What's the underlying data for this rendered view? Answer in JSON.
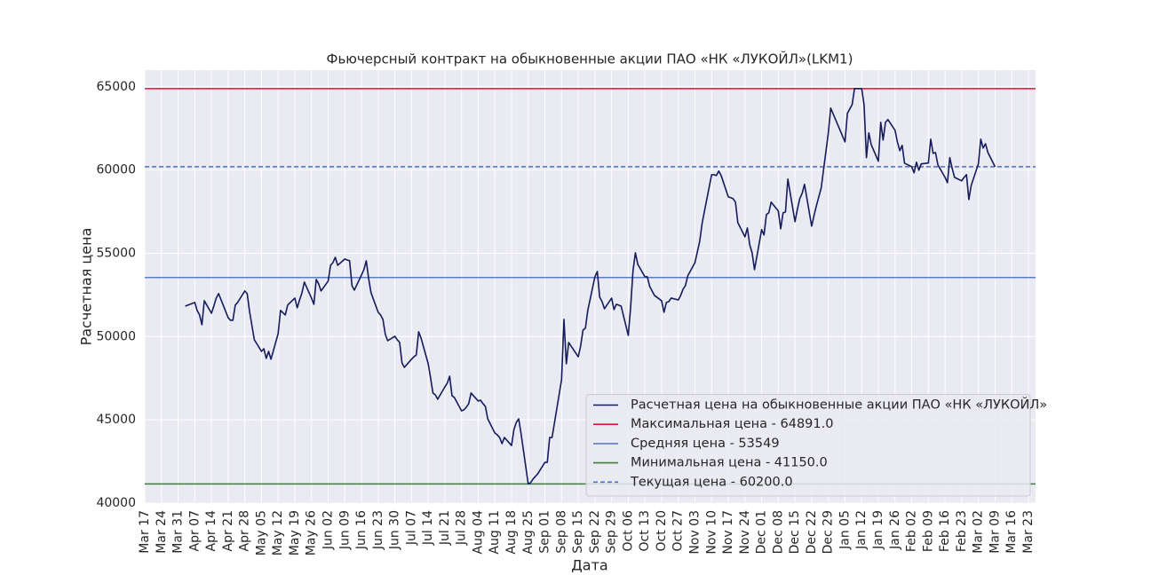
{
  "chart_data": {
    "type": "line",
    "title": "Фьючерсный контракт на обыкновенные акции ПАО «НК «ЛУКОЙЛ»(LKM1)",
    "xlabel": "Дата",
    "ylabel": "Расчетная цена",
    "grid": true,
    "legend": "lower right",
    "xlim": [
      "Mar 17",
      "Mar 26"
    ],
    "ylim": [
      40000,
      66000
    ],
    "yticks": [
      40000,
      45000,
      50000,
      55000,
      60000,
      65000
    ],
    "xticks": [
      "Mar 17",
      "Mar 24",
      "Mar 31",
      "Apr 07",
      "Apr 14",
      "Apr 21",
      "Apr 28",
      "May 05",
      "May 12",
      "May 19",
      "May 26",
      "Jun 02",
      "Jun 09",
      "Jun 16",
      "Jun 23",
      "Jun 30",
      "Jul 07",
      "Jul 14",
      "Jul 21",
      "Jul 28",
      "Aug 04",
      "Aug 11",
      "Aug 18",
      "Aug 25",
      "Sep 01",
      "Sep 08",
      "Sep 15",
      "Sep 22",
      "Sep 29",
      "Oct 06",
      "Oct 13",
      "Oct 20",
      "Oct 27",
      "Nov 03",
      "Nov 10",
      "Nov 17",
      "Nov 24",
      "Dec 01",
      "Dec 08",
      "Dec 15",
      "Dec 22",
      "Dec 29",
      "Jan 05",
      "Jan 12",
      "Jan 19",
      "Jan 26",
      "Feb 02",
      "Feb 09",
      "Feb 16",
      "Feb 23",
      "Mar 02",
      "Mar 09",
      "Mar 16",
      "Mar 23"
    ],
    "x": [
      "Apr 03",
      "Apr 07",
      "Apr 08",
      "Apr 09",
      "Apr 10",
      "Apr 11",
      "Apr 14",
      "Apr 15",
      "Apr 16",
      "Apr 17",
      "Apr 21",
      "Apr 22",
      "Apr 23",
      "Apr 24",
      "Apr 25",
      "Apr 28",
      "Apr 29",
      "Apr 30",
      "May 02",
      "May 05",
      "May 06",
      "May 07",
      "May 08",
      "May 09",
      "May 12",
      "May 13",
      "May 15",
      "May 16",
      "May 19",
      "May 20",
      "May 21",
      "May 22",
      "May 23",
      "May 26",
      "May 27",
      "May 28",
      "May 29",
      "May 30",
      "Jun 02",
      "Jun 03",
      "Jun 04",
      "Jun 05",
      "Jun 06",
      "Jun 09",
      "Jun 10",
      "Jun 11",
      "Jun 12",
      "Jun 13",
      "Jun 16",
      "Jun 17",
      "Jun 18",
      "Jun 19",
      "Jun 20",
      "Jun 23",
      "Jun 24",
      "Jun 25",
      "Jun 26",
      "Jun 27",
      "Jun 30",
      "Jul 01",
      "Jul 02",
      "Jul 03",
      "Jul 04",
      "Jul 07",
      "Jul 08",
      "Jul 09",
      "Jul 10",
      "Jul 11",
      "Jul 14",
      "Jul 15",
      "Jul 16",
      "Jul 17",
      "Jul 18",
      "Jul 21",
      "Jul 22",
      "Jul 23",
      "Jul 24",
      "Jul 25",
      "Jul 28",
      "Jul 29",
      "Jul 30",
      "Jul 31",
      "Aug 01",
      "Aug 04",
      "Aug 05",
      "Aug 06",
      "Aug 07",
      "Aug 08",
      "Aug 11",
      "Aug 12",
      "Aug 13",
      "Aug 14",
      "Aug 15",
      "Aug 18",
      "Aug 19",
      "Aug 20",
      "Aug 21",
      "Aug 22",
      "Aug 25",
      "Aug 26",
      "Aug 27",
      "Aug 28",
      "Aug 29",
      "Sep 01",
      "Sep 02",
      "Sep 03",
      "Sep 04",
      "Sep 05",
      "Sep 08",
      "Sep 09",
      "Sep 10",
      "Sep 11",
      "Sep 12",
      "Sep 15",
      "Sep 16",
      "Sep 17",
      "Sep 18",
      "Sep 19",
      "Sep 22",
      "Sep 23",
      "Sep 24",
      "Sep 25",
      "Sep 26",
      "Sep 29",
      "Sep 30",
      "Oct 01",
      "Oct 02",
      "Oct 03",
      "Oct 06",
      "Oct 07",
      "Oct 08",
      "Oct 09",
      "Oct 10",
      "Oct 13",
      "Oct 14",
      "Oct 15",
      "Oct 16",
      "Oct 17",
      "Oct 20",
      "Oct 21",
      "Oct 22",
      "Oct 23",
      "Oct 24",
      "Oct 27",
      "Oct 28",
      "Oct 29",
      "Oct 30",
      "Oct 31",
      "Nov 03",
      "Nov 05",
      "Nov 06",
      "Nov 07",
      "Nov 10",
      "Nov 11",
      "Nov 12",
      "Nov 13",
      "Nov 14",
      "Nov 17",
      "Nov 18",
      "Nov 19",
      "Nov 20",
      "Nov 21",
      "Nov 24",
      "Nov 25",
      "Nov 26",
      "Nov 27",
      "Nov 28",
      "Dec 01",
      "Dec 02",
      "Dec 03",
      "Dec 04",
      "Dec 05",
      "Dec 08",
      "Dec 09",
      "Dec 10",
      "Dec 11",
      "Dec 12",
      "Dec 15",
      "Dec 16",
      "Dec 17",
      "Dec 18",
      "Dec 19",
      "Dec 22",
      "Dec 23",
      "Dec 24",
      "Dec 25",
      "Dec 26",
      "Dec 29",
      "Dec 30",
      "Jan 05",
      "Jan 06",
      "Jan 08",
      "Jan 09",
      "Jan 12",
      "Jan 13",
      "Jan 14",
      "Jan 15",
      "Jan 16",
      "Jan 19",
      "Jan 20",
      "Jan 21",
      "Jan 22",
      "Jan 23",
      "Jan 26",
      "Jan 27",
      "Jan 28",
      "Jan 29",
      "Jan 30",
      "Feb 02",
      "Feb 03",
      "Feb 04",
      "Feb 05",
      "Feb 06",
      "Feb 09",
      "Feb 10",
      "Feb 11",
      "Feb 12",
      "Feb 13",
      "Feb 16",
      "Feb 17",
      "Feb 18",
      "Feb 19",
      "Feb 20",
      "Feb 23",
      "Feb 24",
      "Feb 25",
      "Feb 26",
      "Feb 27",
      "Mar 02",
      "Mar 03",
      "Mar 04",
      "Mar 05",
      "Mar 06",
      "Mar 09"
    ],
    "series": [
      {
        "name": "Расчетная цена на обыкновенные акции ПАО «НК «ЛУКОЙЛ»",
        "color": "#141c5c",
        "values": [
          51830,
          52050,
          51570,
          51300,
          50710,
          52150,
          51400,
          51830,
          52310,
          52580,
          51140,
          50980,
          50980,
          51890,
          52050,
          52740,
          52580,
          51510,
          49810,
          49110,
          49270,
          48690,
          49110,
          48640,
          50180,
          51570,
          51300,
          51890,
          52310,
          51730,
          52200,
          52630,
          53270,
          52310,
          51940,
          53430,
          53170,
          52740,
          53330,
          54280,
          54440,
          54760,
          54280,
          54660,
          54600,
          54550,
          53060,
          52790,
          53700,
          54020,
          54550,
          53480,
          52630,
          51460,
          51300,
          51030,
          50130,
          49750,
          50020,
          49810,
          49650,
          48420,
          48150,
          48640,
          48790,
          48900,
          50290,
          49910,
          48370,
          47520,
          46610,
          46500,
          46240,
          46980,
          47200,
          47620,
          46450,
          46340,
          45540,
          45600,
          45760,
          45970,
          46610,
          46130,
          46180,
          45970,
          45810,
          45060,
          44210,
          44100,
          43940,
          43570,
          43940,
          43460,
          44420,
          44850,
          45060,
          44160,
          41150,
          41230,
          41440,
          41600,
          41760,
          42450,
          42450,
          43940,
          43940,
          44800,
          47410,
          51030,
          48370,
          49650,
          49430,
          48790,
          49430,
          50390,
          50500,
          51570,
          53590,
          53910,
          52370,
          52100,
          51670,
          52310,
          51620,
          51940,
          51890,
          51830,
          50070,
          51780,
          53960,
          55030,
          54340,
          53590,
          53590,
          53010,
          52740,
          52470,
          52150,
          51460,
          52050,
          52100,
          52310,
          52200,
          52470,
          52840,
          53060,
          53650,
          54440,
          55720,
          56790,
          57540,
          59720,
          59720,
          59670,
          59940,
          59670,
          58390,
          58340,
          58280,
          58070,
          56840,
          55990,
          56520,
          55510,
          55030,
          54020,
          56420,
          56100,
          57330,
          57430,
          58070,
          57540,
          56470,
          57430,
          57480,
          59460,
          56900,
          57640,
          58280,
          58600,
          59140,
          56630,
          57270,
          57860,
          58390,
          58920,
          62230,
          63720,
          61690,
          63400,
          63930,
          64891,
          64891,
          63930,
          60740,
          62230,
          61530,
          60530,
          62870,
          61800,
          62870,
          63030,
          62390,
          61690,
          61160,
          61480,
          60410,
          60200,
          59830,
          60470,
          59990,
          60370,
          60420,
          61850,
          61000,
          61050,
          60310,
          59560,
          59240,
          60740,
          60100,
          59560,
          59350,
          59560,
          59720,
          58230,
          59080,
          60370,
          61850,
          61320,
          61580,
          61050,
          60200
        ]
      }
    ],
    "hlines": [
      {
        "name": "Максимальная цена - 64891.0",
        "value": 64891,
        "color": "#dc143c",
        "dashed": false
      },
      {
        "name": "Средняя цена - 53549",
        "value": 53549,
        "color": "#5a7ec4",
        "dashed": false
      },
      {
        "name": "Минимальная цена - 41150.0",
        "value": 41150,
        "color": "#3f7a3f",
        "dashed": false
      },
      {
        "name": "Текущая цена - 60200.0",
        "value": 60200,
        "color": "#4a6fc4",
        "dashed": true
      }
    ]
  }
}
